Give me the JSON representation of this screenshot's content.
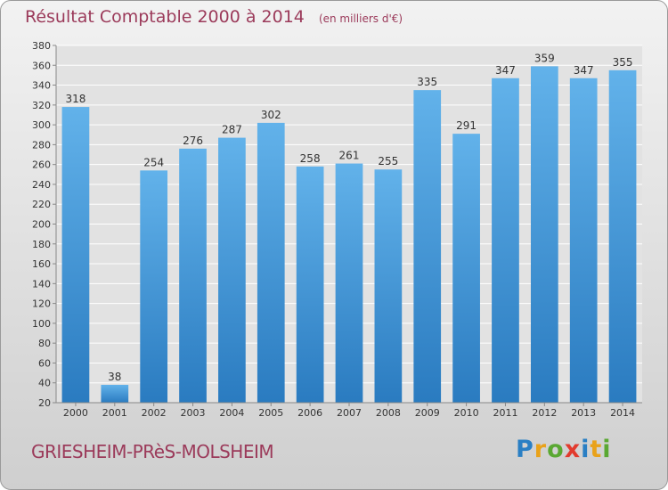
{
  "title": "Résultat Comptable 2000 à 2014",
  "subtitle": "(en milliers d'€)",
  "footer": {
    "city": "GRIESHEIM-PRèS-MOLSHEIM"
  },
  "logo": {
    "text": "Proxiti",
    "letters": [
      {
        "ch": "P",
        "color": "#2a7fc4"
      },
      {
        "ch": "r",
        "color": "#e9a21a"
      },
      {
        "ch": "o",
        "color": "#5aa832"
      },
      {
        "ch": "x",
        "color": "#e23b2e"
      },
      {
        "ch": "i",
        "color": "#2a7fc4"
      },
      {
        "ch": "t",
        "color": "#e9a21a"
      },
      {
        "ch": "i",
        "color": "#5aa832"
      }
    ]
  },
  "colors": {
    "title": "#9b3a5a",
    "bar_light": "#62b2ea",
    "bar_dark": "#2a7bc0",
    "grid": "#ffffff"
  },
  "chart_data": {
    "type": "bar",
    "categories": [
      "2000",
      "2001",
      "2002",
      "2003",
      "2004",
      "2005",
      "2006",
      "2007",
      "2008",
      "2009",
      "2010",
      "2011",
      "2012",
      "2013",
      "2014"
    ],
    "values": [
      318,
      38,
      254,
      276,
      287,
      302,
      258,
      261,
      255,
      335,
      291,
      347,
      359,
      347,
      355
    ],
    "title": "Résultat Comptable 2000 à 2014",
    "subtitle": "(en milliers d'€)",
    "xlabel": "",
    "ylabel": "",
    "ylim": [
      20,
      380
    ],
    "yticks": [
      20,
      40,
      60,
      80,
      100,
      120,
      140,
      160,
      180,
      200,
      220,
      240,
      260,
      280,
      300,
      320,
      340,
      360,
      380
    ],
    "grid": true,
    "legend": "none"
  }
}
